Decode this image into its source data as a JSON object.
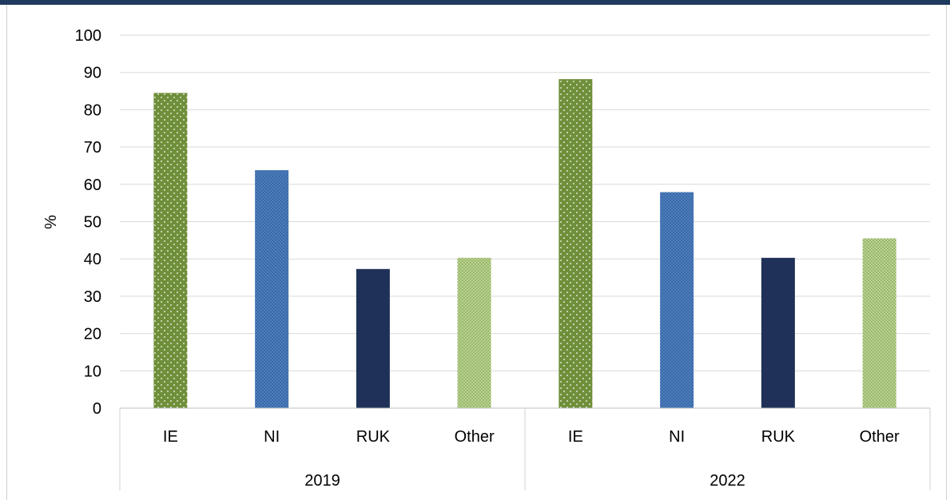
{
  "chart_data": {
    "type": "bar",
    "title": "",
    "ylabel": "%",
    "xlabel": "",
    "ylim": [
      0,
      100
    ],
    "yticks": [
      "0",
      "10",
      "20",
      "30",
      "40",
      "50",
      "60",
      "70",
      "80",
      "90",
      "100"
    ],
    "grid": true,
    "legend": "none",
    "groups": [
      {
        "label": "2019",
        "categories": [
          "IE",
          "NI",
          "RUK",
          "Other"
        ],
        "values": [
          84.5,
          63.8,
          37.3,
          40.3
        ]
      },
      {
        "label": "2022",
        "categories": [
          "IE",
          "NI",
          "RUK",
          "Other"
        ],
        "values": [
          88.2,
          57.9,
          40.3,
          45.5
        ]
      }
    ],
    "colors": {
      "IE": "#6f8f3a",
      "NI": "#4a7fc1",
      "RUK": "#1f3158",
      "Other": "#b9d48c"
    }
  }
}
